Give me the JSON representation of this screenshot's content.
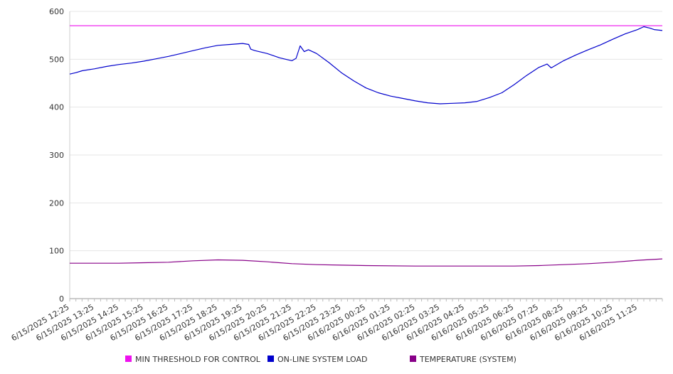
{
  "chart_data": {
    "type": "line",
    "title": "",
    "xlabel": "",
    "ylabel": "",
    "ylim": [
      0,
      600
    ],
    "y_ticks": [
      0,
      100,
      200,
      300,
      400,
      500,
      600
    ],
    "x_tick_labels": [
      "6/15/2025 12:25",
      "6/15/2025 13:25",
      "6/15/2025 14:25",
      "6/15/2025 15:25",
      "6/15/2025 16:25",
      "6/15/2025 17:25",
      "6/15/2025 18:25",
      "6/15/2025 19:25",
      "6/15/2025 20:25",
      "6/15/2025 21:25",
      "6/15/2025 22:25",
      "6/15/2025 23:25",
      "6/16/2025 00:25",
      "6/16/2025 01:25",
      "6/16/2025 02:25",
      "6/16/2025 03:25",
      "6/16/2025 04:25",
      "6/16/2025 05:25",
      "6/16/2025 06:25",
      "6/16/2025 07:25",
      "6/16/2025 08:25",
      "6/16/2025 09:25",
      "6/16/2025 10:25",
      "6/16/2025 11:25"
    ],
    "x_range": [
      "6/15/2025 12:25",
      "6/16/2025 12:25"
    ],
    "grid": true,
    "legend_position": "bottom",
    "series": [
      {
        "name": "MIN THRESHOLD FOR CONTROL",
        "color": "#ee11ee",
        "points": [
          [
            "6/15/2025 12:25",
            570
          ],
          [
            "6/16/2025 12:25",
            570
          ]
        ]
      },
      {
        "name": "ON-LINE SYSTEM LOAD",
        "color": "#0000cc",
        "points": [
          [
            "6/15/2025 12:25",
            469
          ],
          [
            "6/15/2025 12:40",
            472
          ],
          [
            "6/15/2025 12:55",
            476
          ],
          [
            "6/15/2025 13:25",
            480
          ],
          [
            "6/15/2025 13:55",
            485
          ],
          [
            "6/15/2025 14:25",
            489
          ],
          [
            "6/15/2025 14:55",
            492
          ],
          [
            "6/15/2025 15:25",
            496
          ],
          [
            "6/15/2025 15:55",
            501
          ],
          [
            "6/15/2025 16:25",
            506
          ],
          [
            "6/15/2025 16:55",
            512
          ],
          [
            "6/15/2025 17:25",
            518
          ],
          [
            "6/15/2025 17:55",
            524
          ],
          [
            "6/15/2025 18:25",
            529
          ],
          [
            "6/15/2025 18:55",
            531
          ],
          [
            "6/15/2025 19:25",
            533
          ],
          [
            "6/15/2025 19:40",
            531
          ],
          [
            "6/15/2025 19:45",
            521
          ],
          [
            "6/15/2025 19:55",
            518
          ],
          [
            "6/15/2025 20:25",
            512
          ],
          [
            "6/15/2025 20:55",
            503
          ],
          [
            "6/15/2025 21:25",
            497
          ],
          [
            "6/15/2025 21:35",
            502
          ],
          [
            "6/15/2025 21:45",
            528
          ],
          [
            "6/15/2025 21:55",
            516
          ],
          [
            "6/15/2025 22:05",
            520
          ],
          [
            "6/15/2025 22:25",
            512
          ],
          [
            "6/15/2025 22:55",
            493
          ],
          [
            "6/15/2025 23:25",
            472
          ],
          [
            "6/15/2025 23:55",
            455
          ],
          [
            "6/16/2025 00:25",
            440
          ],
          [
            "6/16/2025 00:55",
            430
          ],
          [
            "6/16/2025 01:25",
            423
          ],
          [
            "6/16/2025 01:55",
            418
          ],
          [
            "6/16/2025 02:25",
            413
          ],
          [
            "6/16/2025 02:55",
            409
          ],
          [
            "6/16/2025 03:25",
            407
          ],
          [
            "6/16/2025 03:55",
            408
          ],
          [
            "6/16/2025 04:25",
            409
          ],
          [
            "6/16/2025 04:55",
            412
          ],
          [
            "6/16/2025 05:25",
            420
          ],
          [
            "6/16/2025 05:55",
            430
          ],
          [
            "6/16/2025 06:25",
            447
          ],
          [
            "6/16/2025 06:55",
            466
          ],
          [
            "6/16/2025 07:25",
            483
          ],
          [
            "6/16/2025 07:45",
            490
          ],
          [
            "6/16/2025 07:55",
            482
          ],
          [
            "6/16/2025 08:25",
            497
          ],
          [
            "6/16/2025 08:55",
            509
          ],
          [
            "6/16/2025 09:25",
            520
          ],
          [
            "6/16/2025 09:55",
            530
          ],
          [
            "6/16/2025 10:25",
            542
          ],
          [
            "6/16/2025 10:55",
            553
          ],
          [
            "6/16/2025 11:25",
            562
          ],
          [
            "6/16/2025 11:40",
            568
          ],
          [
            "6/16/2025 11:55",
            565
          ],
          [
            "6/16/2025 12:05",
            562
          ],
          [
            "6/16/2025 12:25",
            560
          ]
        ]
      },
      {
        "name": "TEMPERATURE (SYSTEM)",
        "color": "#880088",
        "points": [
          [
            "6/15/2025 12:25",
            74
          ],
          [
            "6/15/2025 14:25",
            74
          ],
          [
            "6/15/2025 15:25",
            75
          ],
          [
            "6/15/2025 16:25",
            76
          ],
          [
            "6/15/2025 17:25",
            79
          ],
          [
            "6/15/2025 18:25",
            81
          ],
          [
            "6/15/2025 19:25",
            80
          ],
          [
            "6/15/2025 20:25",
            77
          ],
          [
            "6/15/2025 21:25",
            73
          ],
          [
            "6/15/2025 22:25",
            71
          ],
          [
            "6/15/2025 23:25",
            70
          ],
          [
            "6/16/2025 00:25",
            69
          ],
          [
            "6/16/2025 02:25",
            68
          ],
          [
            "6/16/2025 03:25",
            68
          ],
          [
            "6/16/2025 04:25",
            68
          ],
          [
            "6/16/2025 06:25",
            68
          ],
          [
            "6/16/2025 07:25",
            69
          ],
          [
            "6/16/2025 08:25",
            71
          ],
          [
            "6/16/2025 09:25",
            73
          ],
          [
            "6/16/2025 10:25",
            76
          ],
          [
            "6/16/2025 11:25",
            80
          ],
          [
            "6/16/2025 12:25",
            83
          ]
        ]
      }
    ]
  }
}
